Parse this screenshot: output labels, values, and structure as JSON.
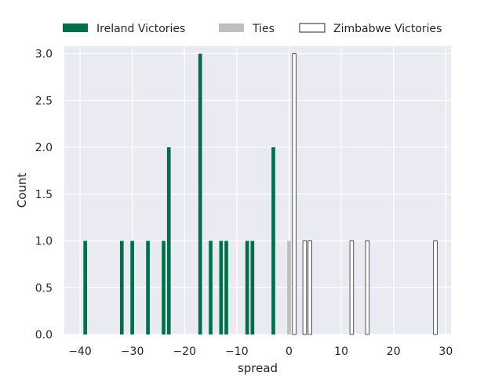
{
  "chart_data": {
    "type": "bar",
    "xlabel": "spread",
    "ylabel": "Count",
    "xlim": [
      -43,
      31
    ],
    "ylim": [
      0,
      3.08
    ],
    "grid": true,
    "legend_placement": "top",
    "bin_width": 0.7,
    "x_ticks": [
      -40,
      -30,
      -20,
      -10,
      0,
      10,
      20,
      30
    ],
    "x_tick_labels": [
      "−40",
      "−30",
      "−20",
      "−10",
      "0",
      "10",
      "20",
      "30"
    ],
    "y_ticks": [
      0,
      0.5,
      1,
      1.5,
      2,
      2.5,
      3
    ],
    "y_tick_labels": [
      "0.0",
      "0.5",
      "1.0",
      "1.5",
      "2.0",
      "2.5",
      "3.0"
    ],
    "series": [
      {
        "name": "Ireland Victories",
        "color": "#00704a",
        "filled": true,
        "points": [
          {
            "x": -39,
            "count": 1
          },
          {
            "x": -32,
            "count": 1
          },
          {
            "x": -30,
            "count": 1
          },
          {
            "x": -27,
            "count": 1
          },
          {
            "x": -24,
            "count": 1
          },
          {
            "x": -23,
            "count": 2
          },
          {
            "x": -17,
            "count": 3
          },
          {
            "x": -15,
            "count": 1
          },
          {
            "x": -13,
            "count": 1
          },
          {
            "x": -12,
            "count": 1
          },
          {
            "x": -8,
            "count": 1
          },
          {
            "x": -7,
            "count": 1
          },
          {
            "x": -3,
            "count": 2
          }
        ]
      },
      {
        "name": "Ties",
        "color": "#bfbfbf",
        "filled": true,
        "points": [
          {
            "x": 0,
            "count": 1
          }
        ]
      },
      {
        "name": "Zimbabwe Victories",
        "color": "#ffffff",
        "edge_color": "#262626",
        "filled": false,
        "points": [
          {
            "x": 1,
            "count": 3
          },
          {
            "x": 3,
            "count": 1
          },
          {
            "x": 4,
            "count": 1
          },
          {
            "x": 12,
            "count": 1
          },
          {
            "x": 15,
            "count": 1
          },
          {
            "x": 28,
            "count": 1
          }
        ]
      }
    ]
  }
}
